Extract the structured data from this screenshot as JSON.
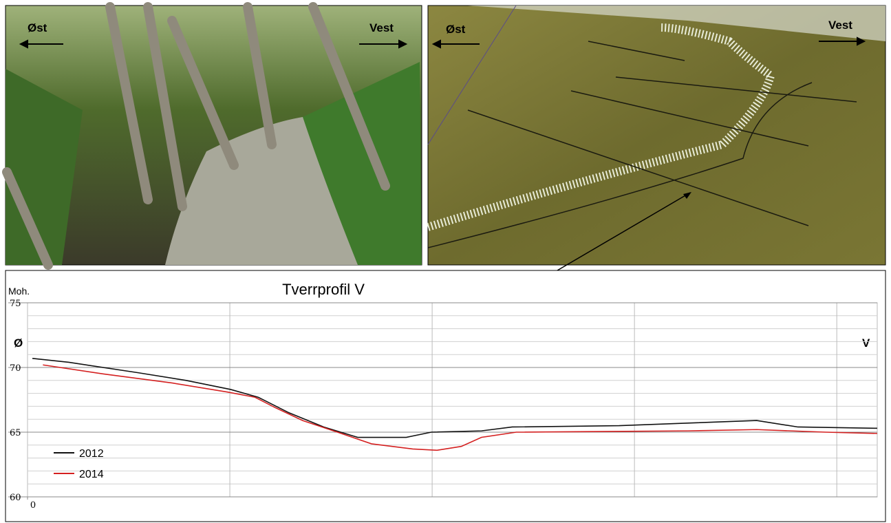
{
  "photo": {
    "left_label": "Øst",
    "right_label": "Vest"
  },
  "terrain": {
    "left_label": "Øst",
    "right_label": "Vest"
  },
  "chart_data": {
    "type": "line",
    "title": "Tverrprofil V",
    "y_label": "Moh.",
    "left_marker": "Ø",
    "right_marker": "V",
    "xlim": [
      0,
      105
    ],
    "xticks": [
      0
    ],
    "xgrid": [
      25,
      50,
      75,
      100
    ],
    "ylim": [
      60,
      75
    ],
    "yticks": [
      60,
      65,
      70,
      75
    ],
    "yminor": 1,
    "grid": true,
    "series": [
      {
        "name": "2012",
        "color": "#111111",
        "x": [
          0.6,
          5.1,
          13.6,
          19.6,
          25.1,
          28.5,
          32.3,
          36.6,
          40.8,
          46.8,
          49.9,
          56.1,
          59.9,
          73.1,
          81.6,
          90.1,
          95.2,
          105
        ],
        "values": [
          70.7,
          70.4,
          69.6,
          69.0,
          68.3,
          67.7,
          66.5,
          65.4,
          64.6,
          64.6,
          65.0,
          65.1,
          65.4,
          65.5,
          65.7,
          65.9,
          65.4,
          65.3
        ]
      },
      {
        "name": "2014",
        "color": "#d42020",
        "x": [
          1.9,
          9.4,
          17.9,
          24.7,
          28.1,
          30.6,
          34.0,
          38.3,
          42.5,
          47.6,
          50.6,
          53.6,
          56.1,
          60.4,
          81.6,
          90.1,
          98.6,
          105
        ],
        "values": [
          70.2,
          69.5,
          68.8,
          68.1,
          67.7,
          66.9,
          65.9,
          65.0,
          64.1,
          63.7,
          63.6,
          63.9,
          64.6,
          65.0,
          65.1,
          65.2,
          65.0,
          64.9
        ]
      }
    ]
  }
}
